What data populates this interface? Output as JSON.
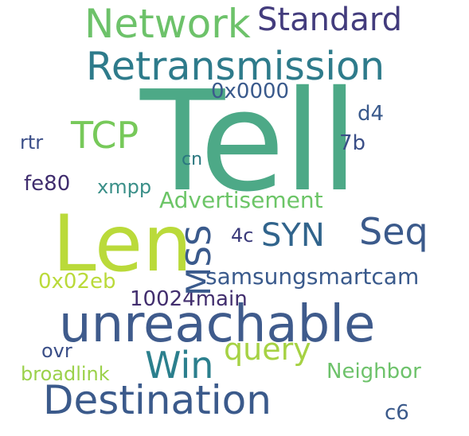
{
  "words": [
    {
      "text": "Tell"
    },
    {
      "text": "Len"
    },
    {
      "text": "unreachable"
    },
    {
      "text": "Destination"
    },
    {
      "text": "Retransmission"
    },
    {
      "text": "Network"
    },
    {
      "text": "Standard"
    },
    {
      "text": "TCP"
    },
    {
      "text": "SYN"
    },
    {
      "text": "Seq"
    },
    {
      "text": "Win"
    },
    {
      "text": "query"
    },
    {
      "text": "samsungsmartcam"
    },
    {
      "text": "Advertisement"
    },
    {
      "text": "Neighbor"
    },
    {
      "text": "0x0000"
    },
    {
      "text": "10024main"
    },
    {
      "text": "0x02eb"
    },
    {
      "text": "fe80"
    },
    {
      "text": "xmpp"
    },
    {
      "text": "broadlink"
    },
    {
      "text": "rtr"
    },
    {
      "text": "ovr"
    },
    {
      "text": "cn"
    },
    {
      "text": "4c"
    },
    {
      "text": "d4"
    },
    {
      "text": "7b"
    },
    {
      "text": "c6"
    },
    {
      "text": "MSS"
    },
    {
      "text": ""
    },
    {
      "text": ""
    }
  ],
  "colors": {
    "background": "#ffffff",
    "palette": [
      "#4da987",
      "#bada3a",
      "#3f5b8c",
      "#2e7b8b",
      "#6dc26a",
      "#433c7d"
    ]
  }
}
